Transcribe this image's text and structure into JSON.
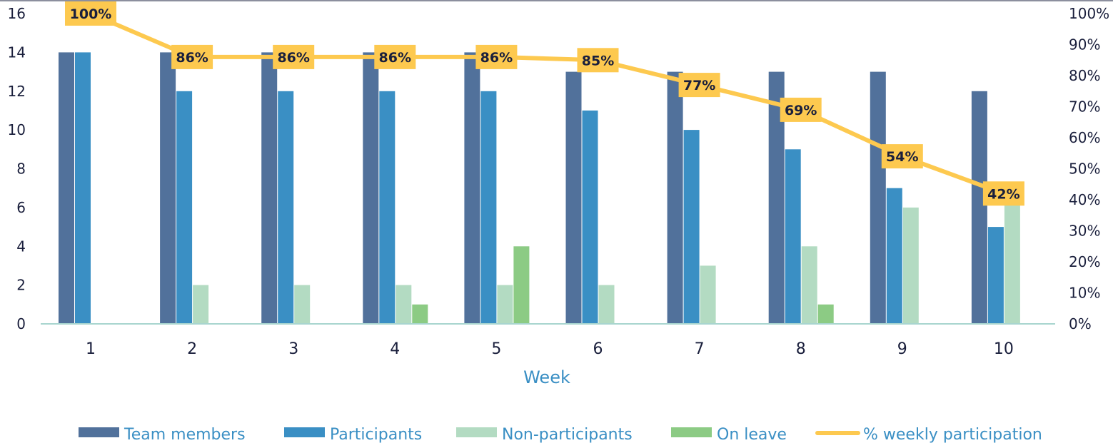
{
  "chart_data": {
    "type": "bar",
    "categories": [
      "1",
      "2",
      "3",
      "4",
      "5",
      "6",
      "7",
      "8",
      "9",
      "10"
    ],
    "xlabel": "Week",
    "ylim": [
      0,
      16
    ],
    "y_ticks": [
      "0",
      "2",
      "4",
      "6",
      "8",
      "10",
      "12",
      "14",
      "16"
    ],
    "y2lim": [
      0,
      100
    ],
    "y2_ticks": [
      "0%",
      "10%",
      "20%",
      "30%",
      "40%",
      "50%",
      "60%",
      "70%",
      "80%",
      "90%",
      "100%"
    ],
    "series": [
      {
        "name": "Team members",
        "type": "bar",
        "color": "#51719b",
        "values": [
          14,
          14,
          14,
          14,
          14,
          13,
          13,
          13,
          13,
          12
        ]
      },
      {
        "name": "Participants",
        "type": "bar",
        "color": "#3a8fc4",
        "values": [
          14,
          12,
          12,
          12,
          12,
          11,
          10,
          9,
          7,
          5
        ]
      },
      {
        "name": "Non-participants",
        "type": "bar",
        "color": "#b3dbc2",
        "values": [
          0,
          2,
          2,
          2,
          2,
          2,
          3,
          4,
          6,
          7
        ]
      },
      {
        "name": "On leave",
        "type": "bar",
        "color": "#8ccb84",
        "values": [
          0,
          0,
          0,
          1,
          4,
          0,
          0,
          1,
          0,
          0
        ]
      },
      {
        "name": "% weekly participation",
        "type": "line",
        "axis": "right",
        "color": "#fdc94f",
        "values": [
          100,
          86,
          86,
          86,
          86,
          85,
          77,
          69,
          54,
          42
        ],
        "labels": [
          "100%",
          "86%",
          "86%",
          "86%",
          "86%",
          "85%",
          "77%",
          "69%",
          "54%",
          "42%"
        ]
      }
    ],
    "legend": "bottom",
    "grid": false
  }
}
